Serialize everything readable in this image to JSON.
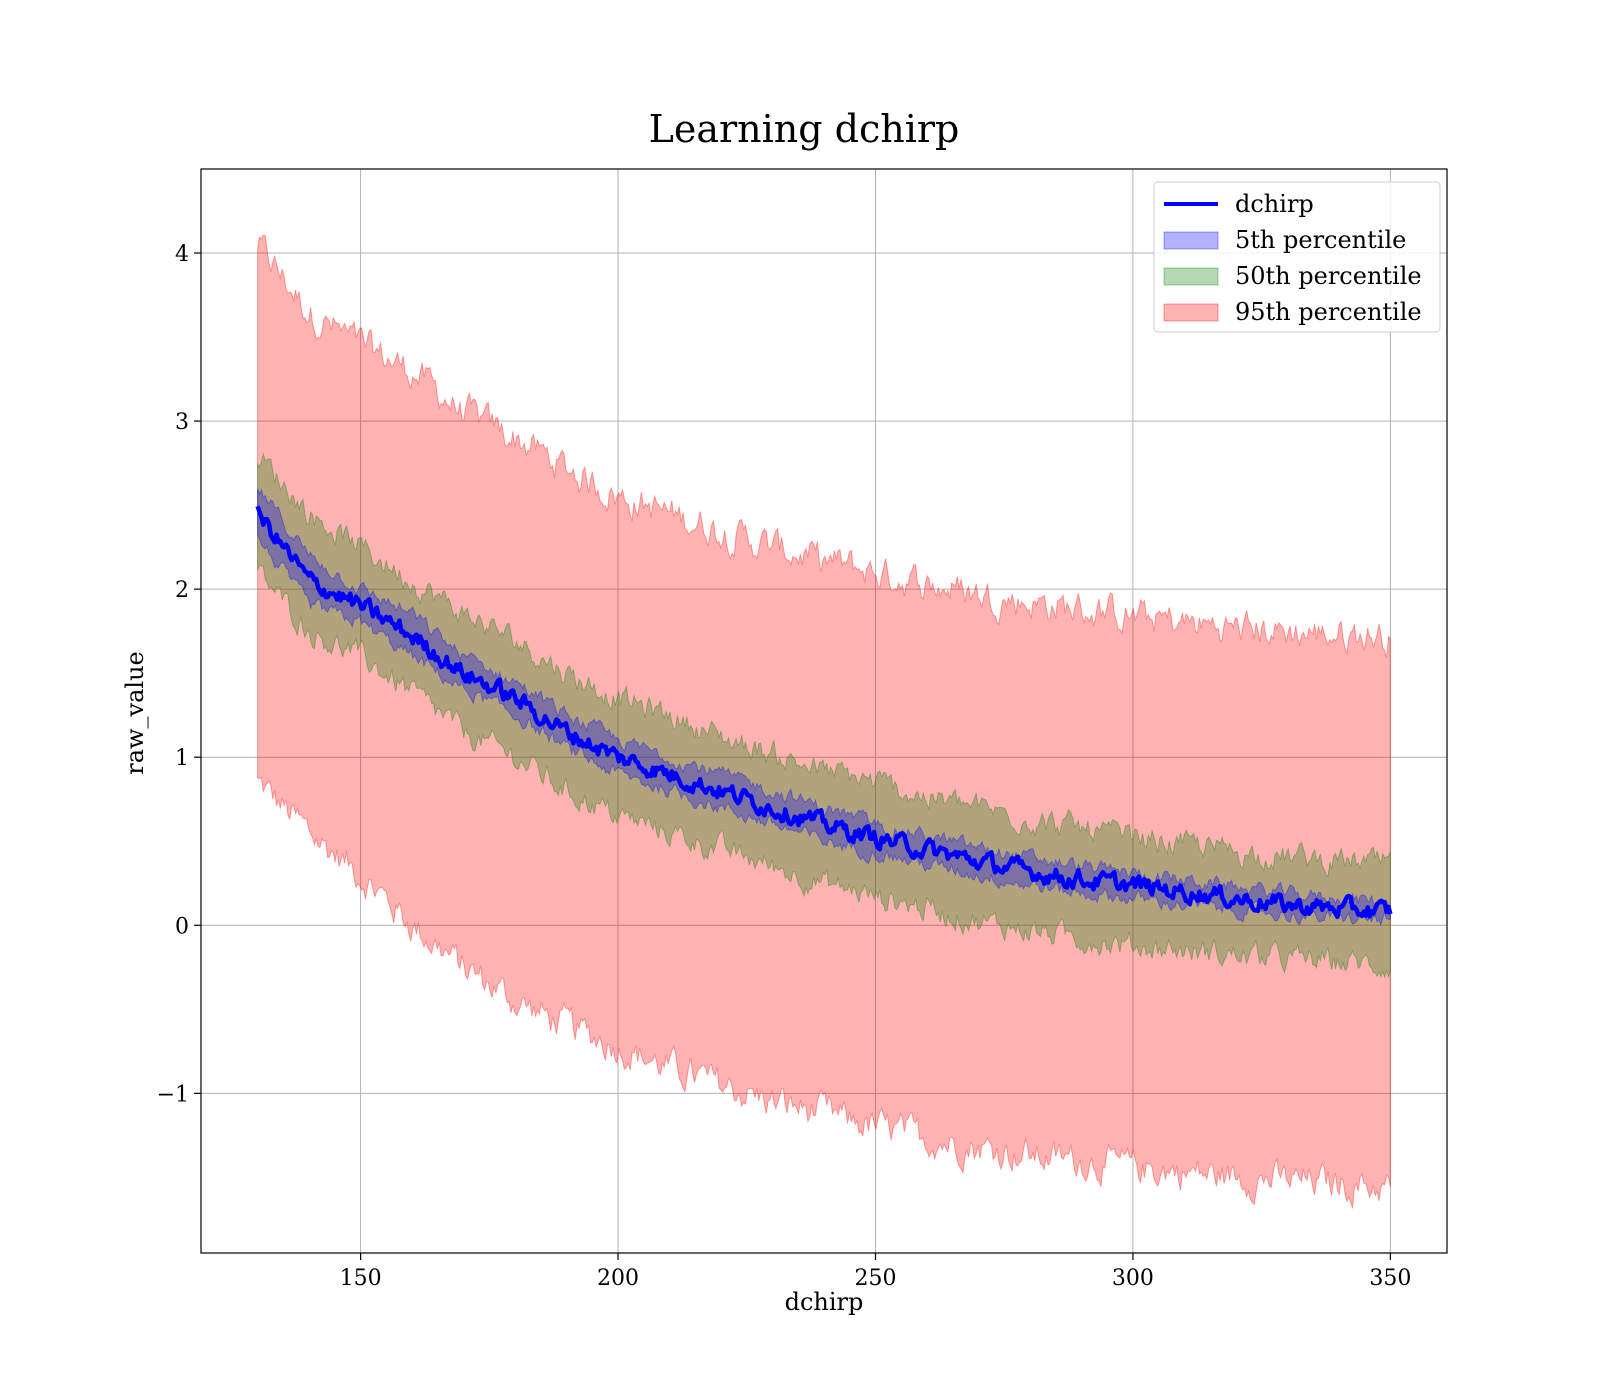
{
  "chart_data": {
    "type": "area",
    "title": "Learning dchirp",
    "xlabel": "dchirp",
    "ylabel": "raw_value",
    "xlim": [
      119,
      361
    ],
    "ylim": [
      -1.95,
      4.5
    ],
    "xticks": [
      150,
      200,
      250,
      300,
      350
    ],
    "xtick_labels": [
      "150",
      "200",
      "250",
      "300",
      "350"
    ],
    "yticks": [
      -1,
      0,
      1,
      2,
      3,
      4
    ],
    "ytick_labels": [
      "−1",
      "0",
      "1",
      "2",
      "3",
      "4"
    ],
    "grid": true,
    "legend_position": "top-right",
    "x_range": [
      130,
      350
    ],
    "series": [
      {
        "name": "dchirp",
        "kind": "line",
        "color": "#0000ff",
        "x": [
          130,
          140,
          150,
          160,
          170,
          180,
          190,
          200,
          210,
          220,
          230,
          240,
          250,
          260,
          270,
          280,
          290,
          300,
          310,
          320,
          330,
          340,
          350
        ],
        "y": [
          2.45,
          2.05,
          1.9,
          1.72,
          1.5,
          1.35,
          1.15,
          1.0,
          0.9,
          0.8,
          0.7,
          0.6,
          0.52,
          0.45,
          0.38,
          0.32,
          0.27,
          0.24,
          0.2,
          0.16,
          0.12,
          0.1,
          0.08
        ]
      },
      {
        "name": "5th percentile",
        "kind": "band",
        "color": "#0000ff",
        "x": [
          130,
          140,
          150,
          160,
          170,
          180,
          190,
          200,
          210,
          220,
          230,
          240,
          250,
          260,
          270,
          280,
          290,
          300,
          310,
          320,
          330,
          340,
          350
        ],
        "lower": [
          2.3,
          1.9,
          1.8,
          1.6,
          1.4,
          1.25,
          1.05,
          0.9,
          0.8,
          0.7,
          0.6,
          0.5,
          0.43,
          0.36,
          0.3,
          0.24,
          0.19,
          0.16,
          0.12,
          0.09,
          0.06,
          0.04,
          0.03
        ],
        "upper": [
          2.6,
          2.2,
          2.0,
          1.85,
          1.6,
          1.45,
          1.25,
          1.1,
          1.0,
          0.9,
          0.8,
          0.7,
          0.6,
          0.53,
          0.46,
          0.4,
          0.35,
          0.31,
          0.27,
          0.23,
          0.19,
          0.16,
          0.14
        ]
      },
      {
        "name": "50th percentile",
        "kind": "band",
        "color": "#008000",
        "x": [
          130,
          140,
          150,
          160,
          170,
          180,
          190,
          200,
          210,
          220,
          230,
          240,
          250,
          260,
          270,
          280,
          290,
          300,
          310,
          320,
          330,
          340,
          350
        ],
        "lower": [
          2.1,
          1.75,
          1.6,
          1.38,
          1.15,
          1.0,
          0.8,
          0.65,
          0.55,
          0.45,
          0.35,
          0.25,
          0.17,
          0.1,
          0.02,
          -0.03,
          -0.08,
          -0.12,
          -0.15,
          -0.18,
          -0.2,
          -0.22,
          -0.24
        ],
        "upper": [
          2.8,
          2.45,
          2.25,
          2.05,
          1.85,
          1.7,
          1.5,
          1.35,
          1.25,
          1.12,
          1.02,
          0.92,
          0.85,
          0.76,
          0.7,
          0.63,
          0.57,
          0.52,
          0.48,
          0.44,
          0.41,
          0.38,
          0.36
        ]
      },
      {
        "name": "95th percentile",
        "kind": "band",
        "color": "#ff0000",
        "x": [
          130,
          140,
          150,
          160,
          170,
          180,
          190,
          200,
          210,
          220,
          230,
          240,
          250,
          260,
          270,
          280,
          290,
          300,
          310,
          320,
          330,
          340,
          350
        ],
        "lower": [
          0.85,
          0.55,
          0.3,
          0.0,
          -0.25,
          -0.45,
          -0.6,
          -0.72,
          -0.85,
          -0.95,
          -1.05,
          -1.12,
          -1.2,
          -1.27,
          -1.32,
          -1.37,
          -1.4,
          -1.44,
          -1.47,
          -1.5,
          -1.52,
          -1.54,
          -1.56
        ],
        "upper": [
          4.05,
          3.65,
          3.45,
          3.3,
          3.05,
          2.9,
          2.72,
          2.55,
          2.45,
          2.35,
          2.25,
          2.17,
          2.1,
          2.03,
          1.97,
          1.92,
          1.88,
          1.84,
          1.8,
          1.77,
          1.75,
          1.73,
          1.72
        ]
      }
    ]
  }
}
